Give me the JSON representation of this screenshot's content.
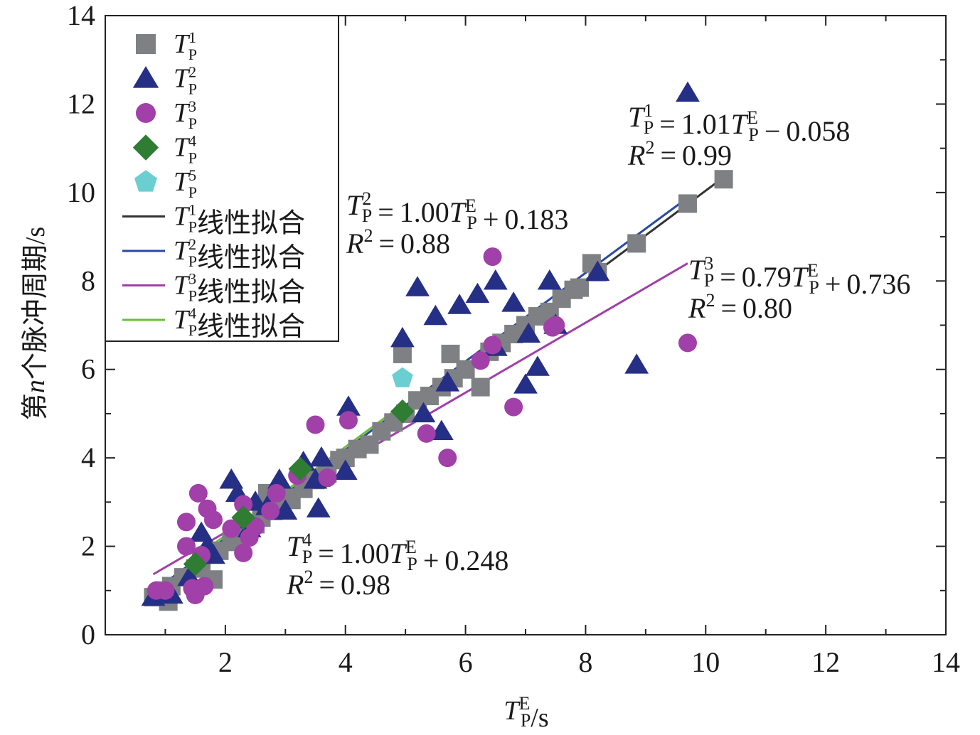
{
  "chart_data": {
    "type": "scatter",
    "xlabel": "T_P^E/s",
    "ylabel": "第n个脉冲周期/s",
    "xlim": [
      0,
      14
    ],
    "ylim": [
      0,
      14
    ],
    "x_ticks": [
      "2",
      "4",
      "6",
      "8",
      "10",
      "12",
      "14"
    ],
    "y_ticks": [
      "0",
      "2",
      "4",
      "6",
      "8",
      "10",
      "12",
      "14"
    ],
    "grid": false,
    "legend_position": "top-left",
    "series": [
      {
        "name": "T_P^1",
        "marker": "square",
        "color": "#7f8084",
        "points": [
          [
            0.8,
            0.85
          ],
          [
            0.9,
            0.9
          ],
          [
            1.0,
            1.0
          ],
          [
            1.05,
            0.75
          ],
          [
            1.1,
            1.1
          ],
          [
            1.3,
            1.3
          ],
          [
            1.5,
            1.5
          ],
          [
            1.6,
            1.6
          ],
          [
            1.8,
            1.25
          ],
          [
            1.9,
            1.9
          ],
          [
            2.1,
            2.1
          ],
          [
            2.2,
            2.25
          ],
          [
            2.3,
            2.4
          ],
          [
            2.5,
            2.5
          ],
          [
            2.6,
            2.65
          ],
          [
            2.7,
            3.2
          ],
          [
            2.8,
            2.8
          ],
          [
            3.0,
            3.1
          ],
          [
            3.1,
            3.05
          ],
          [
            3.3,
            3.3
          ],
          [
            3.5,
            3.5
          ],
          [
            3.6,
            3.55
          ],
          [
            3.7,
            3.65
          ],
          [
            3.9,
            3.95
          ],
          [
            4.0,
            4.0
          ],
          [
            4.2,
            4.2
          ],
          [
            4.4,
            4.3
          ],
          [
            4.6,
            4.6
          ],
          [
            4.8,
            4.8
          ],
          [
            4.95,
            6.35
          ],
          [
            5.0,
            5.0
          ],
          [
            5.2,
            5.3
          ],
          [
            5.4,
            5.4
          ],
          [
            5.6,
            5.6
          ],
          [
            5.75,
            6.35
          ],
          [
            5.8,
            5.8
          ],
          [
            6.0,
            6.0
          ],
          [
            6.25,
            5.6
          ],
          [
            6.4,
            6.4
          ],
          [
            6.6,
            6.6
          ],
          [
            6.8,
            6.8
          ],
          [
            7.0,
            7.0
          ],
          [
            7.2,
            7.2
          ],
          [
            7.4,
            7.3
          ],
          [
            7.6,
            7.6
          ],
          [
            7.8,
            7.8
          ],
          [
            7.9,
            7.85
          ],
          [
            8.1,
            8.4
          ],
          [
            8.2,
            8.2
          ],
          [
            8.85,
            8.85
          ],
          [
            9.7,
            9.75
          ],
          [
            10.3,
            10.3
          ]
        ]
      },
      {
        "name": "T_P^2",
        "marker": "triangle",
        "color": "#252f85",
        "points": [
          [
            0.8,
            0.85
          ],
          [
            1.0,
            0.95
          ],
          [
            1.1,
            0.9
          ],
          [
            1.4,
            1.3
          ],
          [
            1.6,
            2.3
          ],
          [
            1.7,
            2.0
          ],
          [
            1.8,
            1.8
          ],
          [
            2.1,
            3.5
          ],
          [
            2.2,
            3.2
          ],
          [
            2.3,
            2.6
          ],
          [
            2.4,
            2.4
          ],
          [
            2.5,
            3.0
          ],
          [
            2.7,
            2.9
          ],
          [
            2.9,
            3.5
          ],
          [
            3.0,
            2.8
          ],
          [
            3.3,
            3.9
          ],
          [
            3.5,
            3.5
          ],
          [
            3.55,
            2.85
          ],
          [
            3.6,
            4.0
          ],
          [
            4.0,
            3.7
          ],
          [
            4.05,
            5.15
          ],
          [
            4.95,
            6.7
          ],
          [
            5.2,
            7.85
          ],
          [
            5.3,
            5.0
          ],
          [
            5.5,
            7.2
          ],
          [
            5.6,
            4.6
          ],
          [
            5.7,
            5.7
          ],
          [
            5.9,
            7.45
          ],
          [
            6.2,
            7.7
          ],
          [
            6.5,
            8.0
          ],
          [
            6.5,
            6.5
          ],
          [
            6.8,
            7.5
          ],
          [
            7.0,
            5.65
          ],
          [
            7.05,
            6.8
          ],
          [
            7.2,
            6.05
          ],
          [
            7.4,
            8.0
          ],
          [
            7.5,
            7.0
          ],
          [
            8.2,
            8.2
          ],
          [
            8.85,
            6.1
          ],
          [
            9.7,
            12.25
          ]
        ]
      },
      {
        "name": "T_P^3",
        "marker": "circle",
        "color": "#a040a8",
        "points": [
          [
            0.85,
            1.0
          ],
          [
            1.0,
            1.0
          ],
          [
            1.35,
            2.55
          ],
          [
            1.35,
            2.0
          ],
          [
            1.45,
            1.05
          ],
          [
            1.5,
            0.9
          ],
          [
            1.55,
            3.2
          ],
          [
            1.6,
            1.8
          ],
          [
            1.65,
            1.1
          ],
          [
            1.7,
            2.85
          ],
          [
            1.8,
            2.6
          ],
          [
            2.1,
            2.4
          ],
          [
            2.3,
            2.95
          ],
          [
            2.3,
            1.85
          ],
          [
            2.4,
            2.2
          ],
          [
            2.5,
            2.45
          ],
          [
            2.75,
            2.8
          ],
          [
            2.85,
            3.2
          ],
          [
            3.2,
            3.6
          ],
          [
            3.5,
            4.75
          ],
          [
            3.7,
            3.55
          ],
          [
            4.05,
            4.85
          ],
          [
            5.35,
            4.55
          ],
          [
            5.7,
            4.0
          ],
          [
            6.25,
            6.2
          ],
          [
            6.45,
            8.55
          ],
          [
            6.45,
            6.55
          ],
          [
            6.8,
            5.15
          ],
          [
            7.45,
            6.95
          ],
          [
            7.5,
            7.0
          ],
          [
            9.7,
            6.6
          ]
        ]
      },
      {
        "name": "T_P^4",
        "marker": "diamond",
        "color": "#2e7d32",
        "points": [
          [
            1.5,
            1.6
          ],
          [
            2.3,
            2.65
          ],
          [
            3.25,
            3.75
          ],
          [
            4.95,
            5.05
          ]
        ]
      },
      {
        "name": "T_P^5",
        "marker": "pentagon",
        "color": "#6bcfd1",
        "points": [
          [
            4.95,
            5.8
          ]
        ]
      }
    ],
    "fits": [
      {
        "name": "T_P^1线性拟合",
        "color": "#333333",
        "slope": 1.01,
        "intercept": -0.058,
        "x_range": [
          0.8,
          10.3
        ]
      },
      {
        "name": "T_P^2线性拟合",
        "color": "#2a4aa0",
        "slope": 1.0,
        "intercept": 0.183,
        "x_range": [
          0.8,
          9.7
        ]
      },
      {
        "name": "T_P^3线性拟合",
        "color": "#a040a8",
        "slope": 0.79,
        "intercept": 0.736,
        "x_range": [
          0.8,
          9.7
        ]
      },
      {
        "name": "T_P^4线性拟合",
        "color": "#6cbf3a",
        "slope": 1.0,
        "intercept": 0.248,
        "x_range": [
          1.5,
          5.0
        ]
      }
    ],
    "annotations": [
      {
        "label": "1",
        "coef": "1.01",
        "const": "0.058",
        "sign": "−",
        "r2": "0.99"
      },
      {
        "label": "2",
        "coef": "1.00",
        "const": "0.183",
        "sign": "+",
        "r2": "0.88"
      },
      {
        "label": "3",
        "coef": "0.79",
        "const": "0.736",
        "sign": "+",
        "r2": "0.80"
      },
      {
        "label": "4",
        "coef": "1.00",
        "const": "0.248",
        "sign": "+",
        "r2": "0.98"
      }
    ]
  }
}
